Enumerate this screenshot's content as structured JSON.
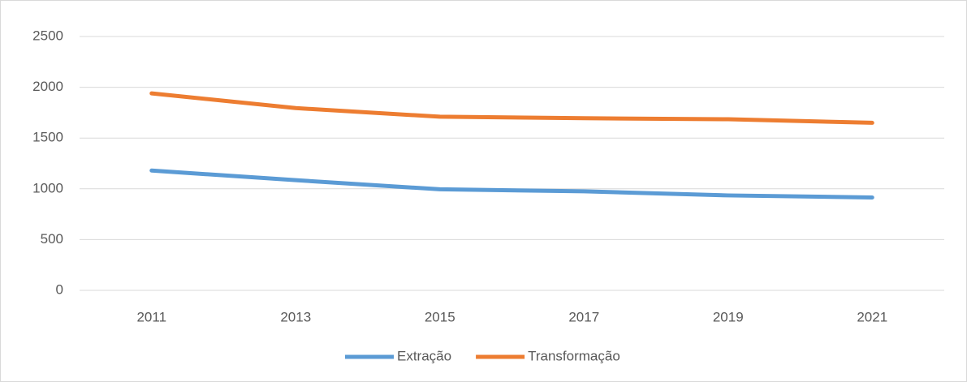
{
  "chart_data": {
    "type": "line",
    "categories": [
      "2011",
      "2013",
      "2015",
      "2017",
      "2019",
      "2021"
    ],
    "series": [
      {
        "name": "Extração",
        "color": "#5b9bd5",
        "values": [
          1180,
          1085,
          995,
          975,
          935,
          915
        ]
      },
      {
        "name": "Transformação",
        "color": "#ed7d31",
        "values": [
          1940,
          1795,
          1710,
          1695,
          1685,
          1650
        ]
      }
    ],
    "ylim": [
      0,
      2500
    ],
    "yticks": [
      0,
      500,
      1000,
      1500,
      2000,
      2500
    ],
    "grid": true,
    "legend": "bottom"
  }
}
